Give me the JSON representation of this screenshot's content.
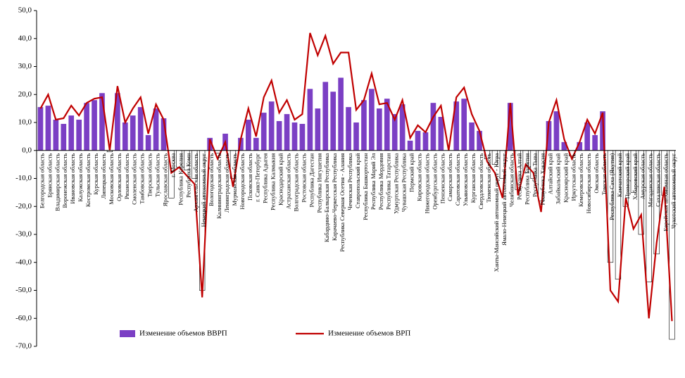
{
  "chart_data": {
    "type": "bar_line",
    "categories": [
      "Белгородская область",
      "Брянская область",
      "Владимирская область",
      "Воронежская область",
      "Ивановская область",
      "Калужская область",
      "Костромская область",
      "Курская область",
      "Липецкая область",
      "Московская область",
      "Орловская область",
      "Рязанская область",
      "Смоленская область",
      "Тамбовская область",
      "Тверская область",
      "Тульская область",
      "Ярославская область",
      "г. Москва",
      "Республика Карелия",
      "Республика Коми",
      "Архангельская область",
      "Ненецкий автономный округ",
      "Вологодская область",
      "Калининградская область",
      "Ленинградская область",
      "Мурманская область",
      "Новгородская область",
      "Псковская область",
      "г. Санкт-Петербург",
      "Республика Адыгея",
      "Республика Калмыкия",
      "Краснодарский край",
      "Астраханская область",
      "Волгоградская область",
      "Ростовская область",
      "Республика Дагестан",
      "Республика Ингушетия",
      "Кабардино-Балкарская Республика",
      "Карачаево-Черкесская Республика",
      "Республика Северная Осетия - Алания",
      "Чеченская Республика",
      "Ставропольский край",
      "Республика Башкортостан",
      "Республика Марий Эл",
      "Республика Мордовия",
      "Республика Татарстан",
      "Удмуртская Республика",
      "Чувашская Республика",
      "Пермский край",
      "Кировская область",
      "Нижегородская область",
      "Оренбургская область",
      "Пензенская область",
      "Самарская область",
      "Саратовская область",
      "Ульяновская область",
      "Курганская область",
      "Свердловская область",
      "Тюменская область",
      "Ханты-Мансийский автономный округ - Югра",
      "Ямало-Ненецкий автономный округ",
      "Челябинская область",
      "Республика Алтай",
      "Республика Бурятия",
      "Республика Тыва",
      "Республика Хакасия",
      "Алтайский край",
      "Забайкальский край",
      "Красноярский край",
      "Иркутская область",
      "Кемеровская область",
      "Новосибирская область",
      "Омская область",
      "Томская область",
      "Республика Саха (Якутия)",
      "Камчатский край",
      "Приморский край",
      "Хабаровский край",
      "Амурская область",
      "Магаданская область",
      "Сахалинская область",
      "Еврейская автономная область",
      "Чукотский автономный округ"
    ],
    "series": [
      {
        "name": "Изменение объемов ВВРП",
        "kind": "bar",
        "color": "#7b3fc4",
        "negative_color": "#ffffff",
        "values": [
          15.5,
          16,
          11,
          9.5,
          12.5,
          11,
          17,
          18,
          20.5,
          -0.5,
          20.5,
          10,
          12.5,
          15.5,
          5.5,
          15,
          11.5,
          -17,
          -6,
          -7,
          -10,
          -50,
          4.5,
          -1,
          6,
          -10,
          4.5,
          11,
          4.5,
          13.5,
          17.5,
          10.5,
          13,
          10,
          9.5,
          22,
          15,
          24.5,
          21,
          26,
          15.5,
          10,
          18,
          22,
          15,
          18.5,
          13,
          16.5,
          3.5,
          7,
          6.5,
          17,
          12,
          0,
          17.5,
          18.5,
          10,
          7,
          -3,
          -5,
          -10,
          17,
          -14,
          -8,
          -10,
          -18,
          10.5,
          14,
          3,
          -2,
          3,
          10,
          5.5,
          14,
          -40,
          -46,
          -20,
          -15,
          -30,
          -47,
          -37,
          -16,
          -67.5
        ]
      },
      {
        "name": "Изменение объемов ВРП",
        "kind": "line",
        "color": "#c00000",
        "values": [
          15,
          20,
          11,
          11.5,
          16,
          12.5,
          17,
          18.5,
          19,
          0,
          23,
          10,
          15,
          19,
          6,
          16.5,
          11,
          -8,
          -6,
          -9,
          -12,
          -52.5,
          4,
          -3,
          3,
          -13,
          4,
          15,
          5,
          19,
          25,
          13.5,
          18,
          11,
          13,
          42,
          34,
          41,
          31,
          35,
          35,
          14.5,
          18,
          27.5,
          16.5,
          17,
          11,
          18,
          4.5,
          9,
          6.5,
          12,
          16,
          0,
          19,
          22.5,
          13,
          7,
          -4,
          -8,
          -17,
          17,
          -16,
          -5,
          -8,
          -22,
          10,
          18,
          4,
          -3,
          3,
          11,
          6,
          13.5,
          -50,
          -54,
          -17,
          -28,
          -23,
          -60,
          -33,
          -13,
          -61
        ]
      }
    ],
    "ylim": [
      -70,
      50
    ],
    "yticks": [
      {
        "value": -70,
        "label": "-70,0"
      },
      {
        "value": -60,
        "label": "-60,0"
      },
      {
        "value": -50,
        "label": "-50,0"
      },
      {
        "value": -40,
        "label": "-40,0"
      },
      {
        "value": -30,
        "label": "-30,0"
      },
      {
        "value": -20,
        "label": "-20,0"
      },
      {
        "value": -10,
        "label": "-10,0"
      },
      {
        "value": 0,
        "label": "0,0"
      },
      {
        "value": 10,
        "label": "10,0"
      },
      {
        "value": 20,
        "label": "20,0"
      },
      {
        "value": 30,
        "label": "30,0"
      },
      {
        "value": 40,
        "label": "40,0"
      },
      {
        "value": 50,
        "label": "50,0"
      }
    ],
    "legend": "bottom"
  }
}
